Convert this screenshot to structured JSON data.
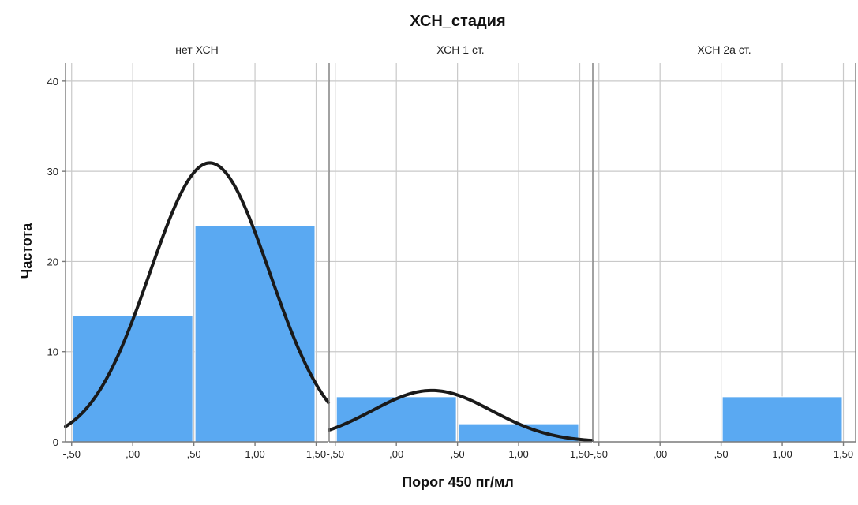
{
  "chart_data": {
    "type": "bar",
    "title": "ХСН_стадия",
    "xlabel": "Порог 450 пг/мл",
    "ylabel": "Частота",
    "ylim": [
      0,
      42
    ],
    "xlim": [
      -0.55,
      1.6
    ],
    "x_ticks": [
      -0.5,
      0,
      0.5,
      1,
      1.5
    ],
    "x_tick_labels": [
      "-,50",
      ",00",
      ",50",
      "1,00",
      "1,50"
    ],
    "y_ticks": [
      0,
      10,
      20,
      30,
      40
    ],
    "y_tick_labels": [
      "0",
      "10",
      "20",
      "30",
      "40"
    ],
    "grid": true,
    "panels": [
      {
        "title": "нет ХСН",
        "bins": [
          {
            "x0": -0.5,
            "x1": 0.5,
            "count": 14
          },
          {
            "x0": 0.5,
            "x1": 1.5,
            "count": 24
          }
        ],
        "normal_curve": {
          "mean": 0.63,
          "sd": 0.49,
          "n": 38
        }
      },
      {
        "title": "ХСН 1 ст.",
        "bins": [
          {
            "x0": -0.5,
            "x1": 0.5,
            "count": 5
          },
          {
            "x0": 0.5,
            "x1": 1.5,
            "count": 2
          }
        ],
        "normal_curve": {
          "mean": 0.29,
          "sd": 0.49,
          "n": 7
        }
      },
      {
        "title": "ХСН 2а ст.",
        "bins": [
          {
            "x0": 0.5,
            "x1": 1.5,
            "count": 5
          }
        ],
        "normal_curve": null
      }
    ]
  }
}
